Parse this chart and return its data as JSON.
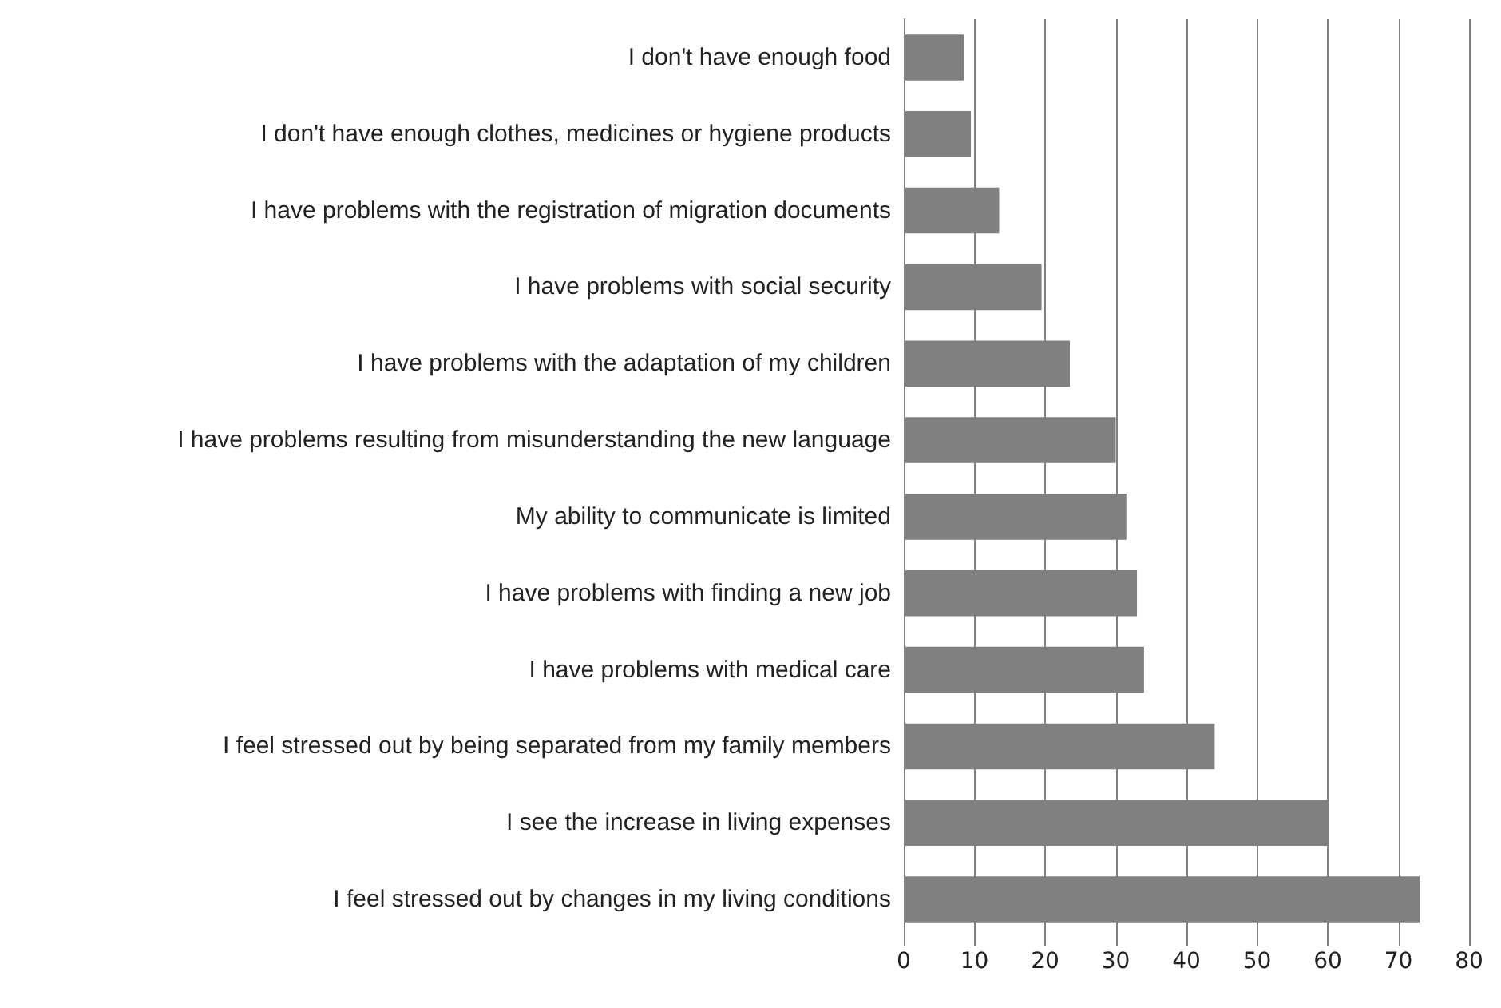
{
  "chart_data": {
    "type": "bar",
    "orientation": "horizontal",
    "categories": [
      "I don't have enough food",
      "I don't have enough clothes, medicines or hygiene products",
      "I have problems with the registration of migration documents",
      "I have problems with social security",
      "I have problems with the adaptation of my children",
      "I have problems resulting from misunderstanding the new language",
      "My ability to communicate is limited",
      "I have problems with finding a new job",
      "I have problems with medical care",
      "I feel stressed out by being separated from my family members",
      "I see the increase in living expenses",
      "I feel stressed out by changes in my living conditions"
    ],
    "values": [
      8.5,
      9.5,
      13.5,
      19.5,
      23.5,
      30,
      31.5,
      33,
      34,
      44,
      60,
      73
    ],
    "color": "#808080",
    "xlim": [
      0,
      80
    ],
    "xticks": [
      0,
      10,
      20,
      30,
      40,
      50,
      60,
      70,
      80
    ],
    "grid": "x"
  }
}
